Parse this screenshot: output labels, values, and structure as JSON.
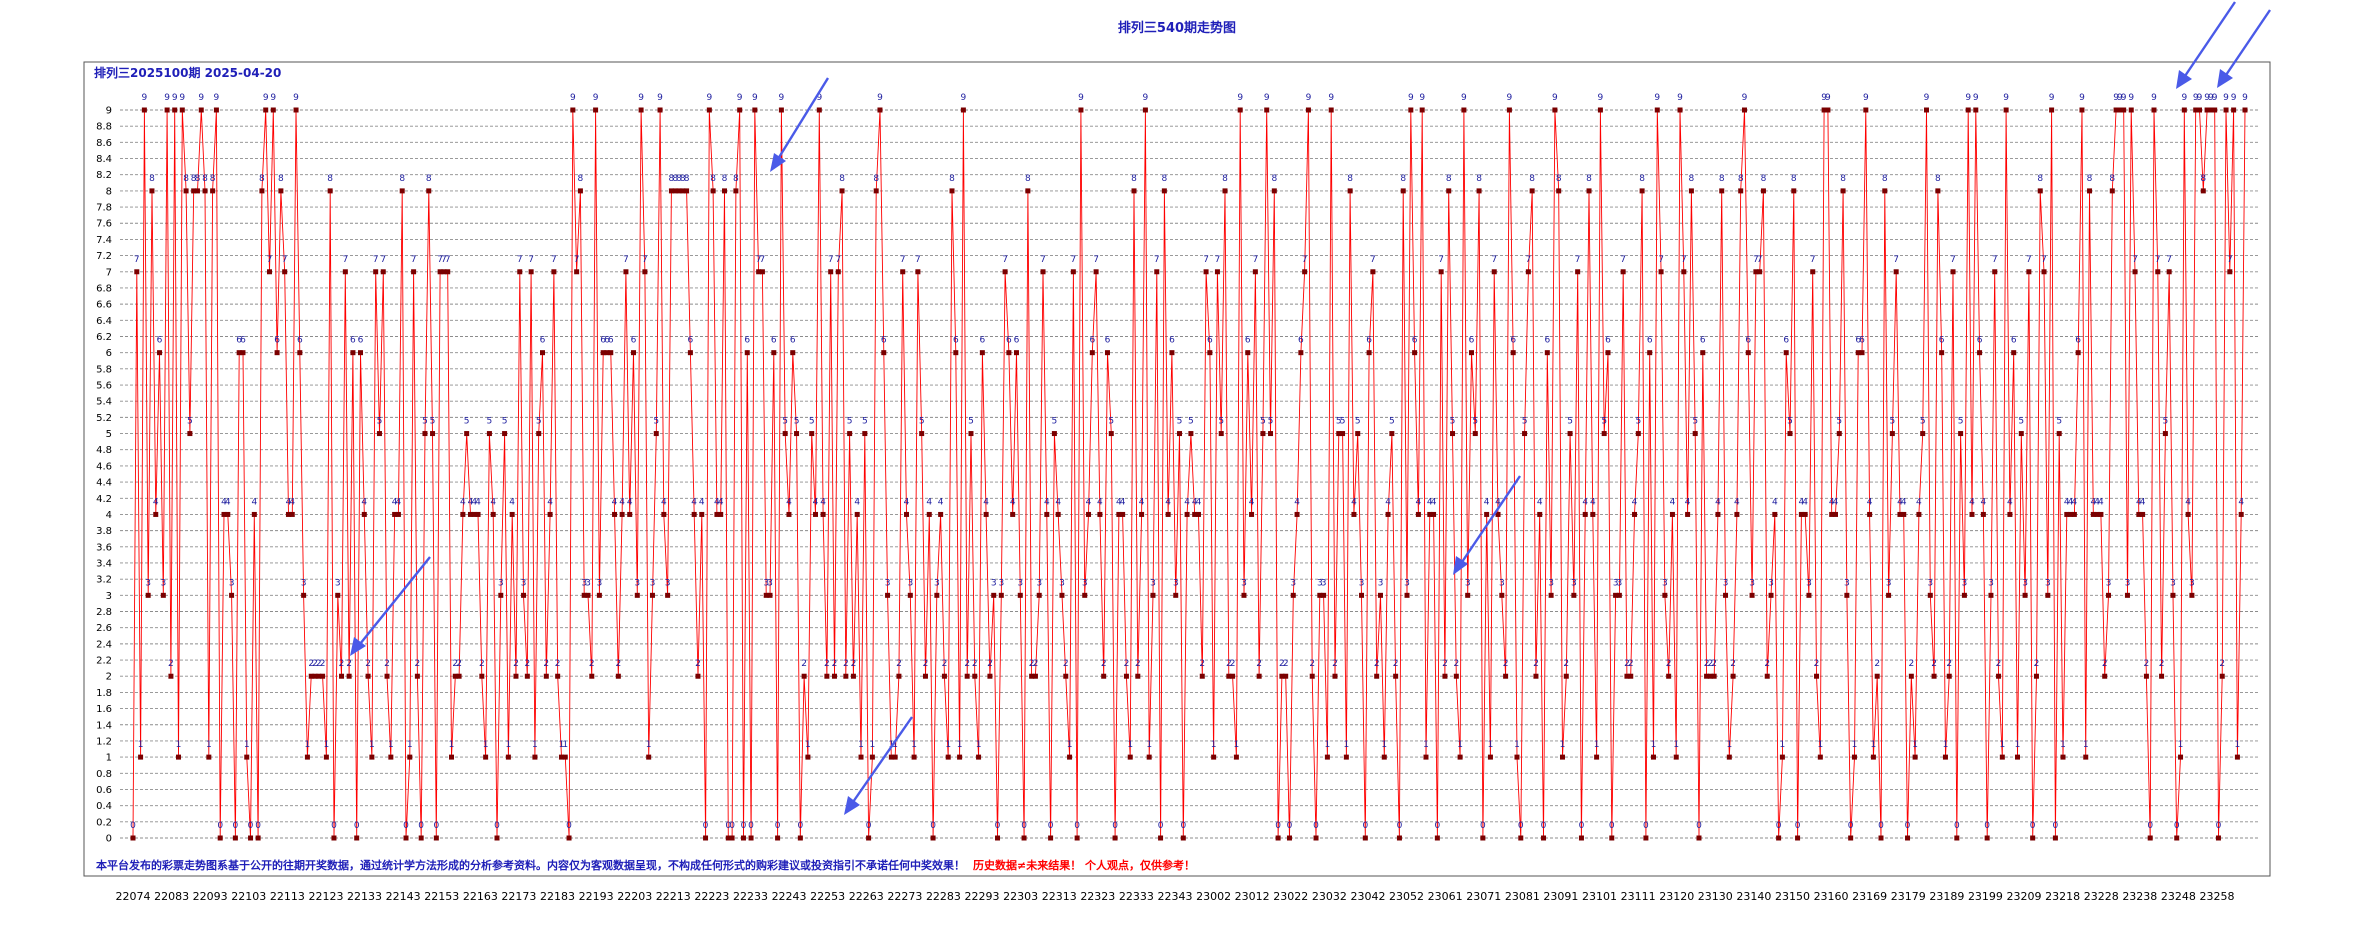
{
  "chart_data": {
    "type": "line",
    "title": "排列三540期走势图",
    "subtitle": "排列三2025100期  2025-04-20",
    "ylim": [
      0,
      9
    ],
    "yticks": [
      "0",
      "0.2",
      "0.4",
      "0.6",
      "0.8",
      "1",
      "1.2",
      "1.4",
      "1.6",
      "1.8",
      "2",
      "2.2",
      "2.4",
      "2.6",
      "2.8",
      "3",
      "3.2",
      "3.4",
      "3.6",
      "3.8",
      "4",
      "4.2",
      "4.4",
      "4.6",
      "4.8",
      "5",
      "5.2",
      "5.4",
      "5.6",
      "5.8",
      "6",
      "6.2",
      "6.4",
      "6.6",
      "6.8",
      "7",
      "7.2",
      "7.4",
      "7.6",
      "7.8",
      "8",
      "8.2",
      "8.4",
      "8.6",
      "8.8",
      "9"
    ],
    "x_tick_labels": [
      "22074",
      "22083",
      "22093",
      "22103",
      "22113",
      "22123",
      "22133",
      "22143",
      "22153",
      "22163",
      "22173",
      "22183",
      "22193",
      "22203",
      "22213",
      "22223",
      "22233",
      "22243",
      "22253",
      "22263",
      "22273",
      "22283",
      "22293",
      "22303",
      "22313",
      "22323",
      "22333",
      "22343",
      "23002",
      "23012",
      "23022",
      "23032",
      "23042",
      "23052",
      "23061",
      "23071",
      "23081",
      "23091",
      "23101",
      "23111",
      "23120",
      "23130",
      "23140",
      "23150",
      "23160",
      "23169",
      "23179",
      "23189",
      "23199",
      "23209",
      "23218",
      "23228",
      "23238",
      "23248",
      "23258"
    ],
    "grid": true,
    "line_color": "#ff0000",
    "marker_color": "#7a0000",
    "label_color": "#2020a0",
    "series": [
      {
        "values": [
          0,
          7,
          1,
          9,
          3,
          8,
          4,
          6,
          3,
          9,
          2,
          9,
          1,
          9,
          8,
          5,
          8,
          8,
          9,
          8,
          1,
          8,
          9,
          0,
          4,
          4,
          3,
          0,
          6,
          6,
          1,
          0,
          4,
          0,
          8,
          9,
          7,
          9,
          6,
          8,
          7,
          4,
          4,
          9,
          6,
          3,
          1,
          2,
          2,
          2,
          2,
          1,
          8,
          0,
          3,
          2,
          7,
          2,
          6,
          0,
          6,
          4,
          2,
          1,
          7,
          5,
          7,
          2,
          1,
          4,
          4,
          8,
          0,
          1,
          7,
          2,
          0,
          5,
          8,
          5,
          0,
          7,
          7,
          7,
          1,
          2,
          2,
          4,
          5,
          4,
          4,
          4,
          2,
          1,
          5,
          4,
          0,
          3,
          5,
          1,
          4,
          2,
          7,
          3,
          2,
          7,
          1,
          5,
          6,
          2,
          4,
          7,
          2,
          1,
          1,
          0,
          9,
          7,
          8,
          3,
          3,
          2,
          9,
          3,
          6,
          6,
          6,
          4,
          2,
          4,
          7,
          4,
          6,
          3,
          9,
          7,
          1,
          3,
          5,
          9,
          4,
          3,
          8,
          8,
          8,
          8,
          8,
          6,
          4,
          2,
          4,
          0,
          9,
          8,
          4,
          4,
          8,
          0,
          0,
          8,
          9,
          0,
          6,
          0,
          9,
          7,
          7,
          3,
          3,
          6,
          0,
          9,
          5,
          4,
          6,
          5,
          0,
          2,
          1,
          5,
          4,
          9,
          4,
          2,
          7,
          2,
          7,
          8,
          2,
          5,
          2,
          4,
          1,
          5,
          0,
          1,
          8,
          9,
          6,
          3,
          1,
          1,
          2,
          7,
          4,
          3,
          1,
          7,
          5,
          2,
          4,
          0,
          3,
          4,
          2,
          1,
          8,
          6,
          1,
          9,
          2,
          5,
          2,
          1,
          6,
          4,
          2,
          3,
          0,
          3,
          7,
          6,
          4,
          6,
          3,
          0,
          8,
          2,
          2,
          3,
          7,
          4,
          0,
          5,
          4,
          3,
          2,
          1,
          7,
          0,
          9,
          3,
          4,
          6,
          7,
          4,
          2,
          6,
          5,
          0,
          4,
          4,
          2,
          1,
          8,
          2,
          4,
          9,
          1,
          3,
          7,
          0,
          8,
          4,
          6,
          3,
          5,
          0,
          4,
          5,
          4,
          4,
          2,
          7,
          6,
          1,
          7,
          5,
          8,
          2,
          2,
          1,
          9,
          3,
          6,
          4,
          7,
          2,
          5,
          9,
          5,
          8,
          0,
          2,
          2,
          0,
          3,
          4,
          6,
          7,
          9,
          2,
          0,
          3,
          3,
          1,
          9,
          2,
          5,
          5,
          1,
          8,
          4,
          5,
          3,
          0,
          6,
          7,
          2,
          3,
          1,
          4,
          5,
          2,
          0,
          8,
          3,
          9,
          6,
          4,
          9,
          1,
          4,
          4,
          0,
          7,
          2,
          8,
          5,
          2,
          1,
          9,
          3,
          6,
          5,
          8,
          0,
          4,
          1,
          7,
          4,
          3,
          2,
          9,
          6,
          1,
          0,
          5,
          7,
          8,
          2,
          4,
          0,
          6,
          3,
          9,
          8,
          1,
          2,
          5,
          3,
          7,
          0,
          4,
          8,
          4,
          1,
          9,
          5,
          6,
          0,
          3,
          3,
          7,
          2,
          2,
          4,
          5,
          8,
          0,
          6,
          1,
          9,
          7,
          3,
          2,
          4,
          1,
          9,
          7,
          4,
          8,
          5,
          0,
          6,
          2,
          2,
          2,
          4,
          8,
          3,
          1,
          2,
          4,
          8,
          9,
          6,
          3,
          7,
          7,
          8,
          2,
          3,
          4,
          0,
          1,
          6,
          5,
          8,
          0,
          4,
          4,
          3,
          7,
          2,
          1,
          9,
          9,
          4,
          4,
          5,
          8,
          3,
          0,
          1,
          6,
          6,
          9,
          4,
          1,
          2,
          0,
          8,
          3,
          5,
          7,
          4,
          4,
          0,
          2,
          1,
          4,
          5,
          9,
          3,
          2,
          8,
          6,
          1,
          2,
          7,
          0,
          5,
          3,
          9,
          4,
          9,
          6,
          4,
          0,
          3,
          7,
          2,
          1,
          9,
          4,
          6,
          1,
          5,
          3,
          7,
          0,
          2,
          8,
          7,
          3,
          9,
          0,
          5,
          1,
          4,
          4,
          4,
          6,
          9,
          1,
          8,
          4,
          4,
          4,
          2,
          3,
          8,
          9,
          9,
          9,
          3,
          9,
          7,
          4,
          4,
          2,
          0,
          9,
          7,
          2,
          5,
          7,
          3,
          0,
          1,
          9,
          4,
          3,
          9,
          9,
          8,
          9,
          9,
          9,
          0,
          2,
          9,
          7,
          9,
          1,
          4,
          9
        ]
      }
    ],
    "disclaimer": {
      "part1": "本平台发布的彩票走势图系基于公开的往期开奖数据，通过统计学方法形成的分析参考资料。内容仅为客观数据呈现，不构成任何形式的购彩建议或投资指引不承诺任何中奖效果！",
      "part2": "历史数据≠未来结果！ 个人观点，仅供参考！"
    }
  }
}
